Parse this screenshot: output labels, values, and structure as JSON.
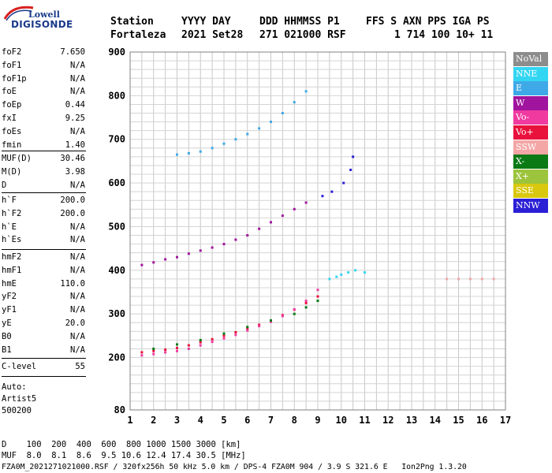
{
  "logo": {
    "line1": "Lowell",
    "line2": "DIGISONDE"
  },
  "header": {
    "row1": [
      "Station",
      "YYYY DAY",
      "DDD HHMMSS P1",
      "FFS S AXN PPS IGA PS"
    ],
    "row2": [
      "Fortaleza",
      "2021 Set28",
      "271 021000 RSF",
      "1 714 100 10+ 11"
    ]
  },
  "params_a": [
    {
      "k": "foF2",
      "v": "7.650"
    },
    {
      "k": "foF1",
      "v": "N/A"
    },
    {
      "k": "foF1p",
      "v": "N/A"
    },
    {
      "k": "foE",
      "v": "N/A"
    },
    {
      "k": "foEp",
      "v": "0.44"
    },
    {
      "k": "fxI",
      "v": "9.25"
    },
    {
      "k": "foEs",
      "v": "N/A"
    },
    {
      "k": "fmin",
      "v": "1.40"
    }
  ],
  "params_b": [
    {
      "k": "MUF(D)",
      "v": "30.46"
    },
    {
      "k": "M(D)",
      "v": "3.98"
    },
    {
      "k": "D",
      "v": "N/A"
    }
  ],
  "params_c": [
    {
      "k": "h`F",
      "v": "200.0"
    },
    {
      "k": "h`F2",
      "v": "200.0"
    },
    {
      "k": "h`E",
      "v": "N/A"
    },
    {
      "k": "h`Es",
      "v": "N/A"
    }
  ],
  "params_d": [
    {
      "k": "hmF2",
      "v": "N/A"
    },
    {
      "k": "hmF1",
      "v": "N/A"
    },
    {
      "k": "hmE",
      "v": "110.0"
    },
    {
      "k": "yF2",
      "v": "N/A"
    },
    {
      "k": "yF1",
      "v": "N/A"
    },
    {
      "k": "yE",
      "v": "20.0"
    },
    {
      "k": "B0",
      "v": "N/A"
    },
    {
      "k": "B1",
      "v": "N/A"
    }
  ],
  "params_e": [
    {
      "k": "C-level",
      "v": "55"
    }
  ],
  "auto": {
    "line1": "Auto:",
    "line2": "Artist5",
    "line3": "500200"
  },
  "footer": {
    "d_row": "D    100  200  400  600  800 1000 1500 3000 [km]",
    "muf_row": "MUF  8.0  8.1  8.6  9.5 10.6 12.4 17.4 30.5 [MHz]",
    "file_row": "FZA0M_2021271021000.RSF / 320fx256h 50 kHz 5.0 km / DPS-4 FZA0M 904 / 3.9 S 321.6 E   Ion2Png 1.3.20"
  },
  "legend": [
    {
      "label": "NoVal",
      "color": "#8c8c8c"
    },
    {
      "label": "NNE",
      "color": "#33d6f2"
    },
    {
      "label": "E",
      "color": "#3fa9e8"
    },
    {
      "label": "W",
      "color": "#a0149e"
    },
    {
      "label": "Vo-",
      "color": "#f03aa0"
    },
    {
      "label": "Vo+",
      "color": "#e8123c"
    },
    {
      "label": "SSW",
      "color": "#f4a6a6"
    },
    {
      "label": "X-",
      "color": "#0a7a14"
    },
    {
      "label": "X+",
      "color": "#9cc43c"
    },
    {
      "label": "SSE",
      "color": "#d9c80e"
    },
    {
      "label": "NNW",
      "color": "#2b1fd6"
    }
  ],
  "chart_data": {
    "type": "scatter",
    "x_ticks": [
      1,
      2,
      3,
      4,
      5,
      6,
      7,
      8,
      9,
      10,
      11,
      12,
      13,
      14,
      15,
      16,
      17
    ],
    "y_ticks": [
      80,
      200,
      300,
      400,
      500,
      600,
      700,
      800,
      900
    ],
    "xlim": [
      1,
      17
    ],
    "ylim": [
      80,
      900
    ],
    "grid": true,
    "legend_position": "right",
    "traces": [
      {
        "name": "Vo+",
        "color": "#e8123c",
        "x": [
          1.5,
          2.0,
          2.5,
          3.0,
          3.5,
          4.0,
          4.5,
          5.0,
          5.5,
          6.0,
          6.5,
          7.0,
          7.5,
          8.0,
          8.5,
          9.0
        ],
        "y": [
          212,
          215,
          218,
          222,
          228,
          235,
          242,
          250,
          258,
          266,
          275,
          285,
          297,
          310,
          325,
          340
        ]
      },
      {
        "name": "Vo-",
        "color": "#f03aa0",
        "x": [
          1.5,
          2.0,
          2.5,
          3.0,
          3.5,
          4.0,
          4.5,
          5.0,
          5.5,
          6.0,
          6.5,
          7.0,
          7.5,
          8.0,
          8.5,
          9.0
        ],
        "y": [
          205,
          208,
          212,
          215,
          220,
          228,
          236,
          244,
          252,
          262,
          272,
          282,
          295,
          310,
          330,
          355
        ]
      },
      {
        "name": "W",
        "color": "#a0149e",
        "x": [
          1.5,
          2.0,
          2.5,
          3.0,
          3.5,
          4.0,
          4.5,
          5.0,
          5.5,
          6.0,
          6.5,
          7.0,
          7.5,
          8.0,
          8.5
        ],
        "y": [
          412,
          418,
          425,
          430,
          438,
          445,
          452,
          460,
          470,
          480,
          495,
          510,
          525,
          540,
          555
        ]
      },
      {
        "name": "X-",
        "color": "#0a7a14",
        "x": [
          2.0,
          3.0,
          4.0,
          5.0,
          6.0,
          7.0,
          8.0,
          8.5,
          9.0
        ],
        "y": [
          220,
          230,
          240,
          255,
          270,
          285,
          300,
          315,
          330
        ]
      },
      {
        "name": "E",
        "color": "#3fa9e8",
        "x": [
          3.0,
          3.5,
          4.0,
          4.5,
          5.0,
          5.5,
          6.0,
          6.5,
          7.0,
          7.5,
          8.0,
          8.5
        ],
        "y": [
          665,
          668,
          672,
          680,
          690,
          700,
          712,
          725,
          740,
          760,
          785,
          810
        ]
      },
      {
        "name": "NNE",
        "color": "#33d6f2",
        "x": [
          9.5,
          9.8,
          10.0,
          10.3,
          10.6,
          11.0
        ],
        "y": [
          380,
          385,
          390,
          395,
          400,
          395
        ]
      },
      {
        "name": "NNW",
        "color": "#2b1fd6",
        "x": [
          9.2,
          9.6,
          10.1,
          10.4,
          10.5
        ],
        "y": [
          570,
          580,
          600,
          630,
          660
        ]
      },
      {
        "name": "SSW",
        "color": "#f4a6a6",
        "x": [
          14.5,
          15.0,
          15.5,
          16.0,
          16.5
        ],
        "y": [
          380,
          380,
          380,
          380,
          380
        ]
      }
    ]
  }
}
